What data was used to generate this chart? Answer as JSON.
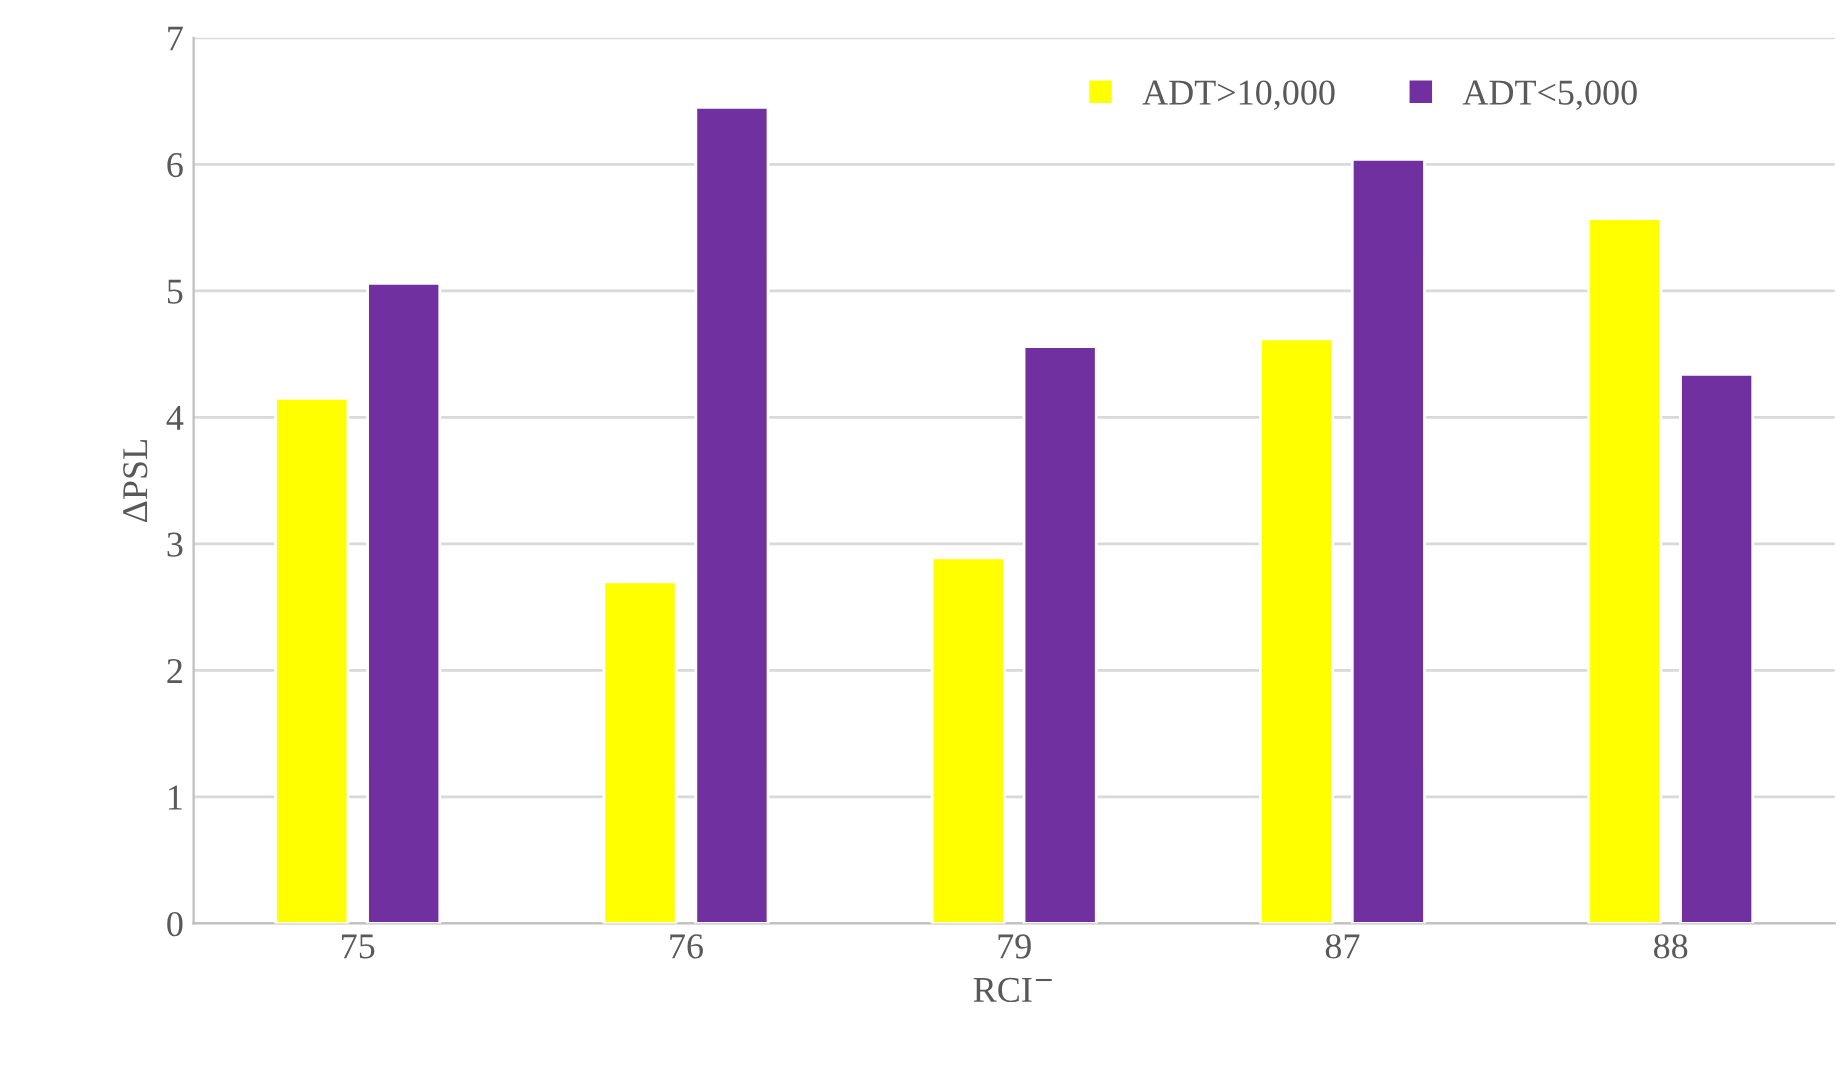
{
  "chart_data": {
    "type": "bar",
    "xlabel": "RCI$^{−}$",
    "ylabel": "ΔPSL",
    "categories": [
      "75",
      "76",
      "79",
      "87",
      "88"
    ],
    "series": [
      {
        "name": "ADT>10,000",
        "color": "#ffff00",
        "values": [
          4.15,
          2.7,
          2.89,
          4.62,
          5.57
        ]
      },
      {
        "name": "ADT<5,000",
        "color": "#7030a0",
        "values": [
          5.06,
          6.45,
          4.56,
          6.04,
          4.34
        ]
      }
    ],
    "ylim": [
      0,
      7
    ],
    "yticks": [
      0,
      1,
      2,
      3,
      4,
      5,
      6,
      7
    ],
    "grid": "y",
    "legend": "top right"
  }
}
